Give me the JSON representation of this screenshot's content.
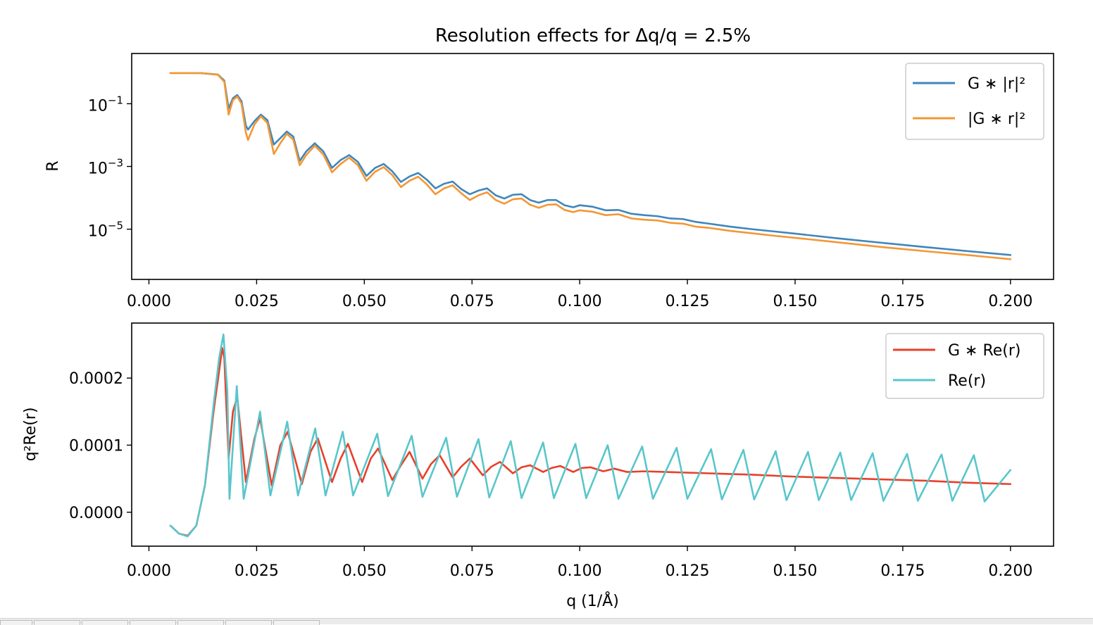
{
  "figure_title": "Resolution effects for Δq/q = 2.5%",
  "chart_data": [
    {
      "type": "line",
      "title": "Resolution effects for Δq/q = 2.5%",
      "xlabel": "",
      "ylabel": "R",
      "yscale": "log",
      "xlim": [
        -0.004,
        0.21
      ],
      "ylim": [
        2.5e-07,
        4.0
      ],
      "x_ticks": [
        0.0,
        0.025,
        0.05,
        0.075,
        0.1,
        0.125,
        0.15,
        0.175,
        0.2
      ],
      "x_tick_labels": [
        "0.000",
        "0.025",
        "0.050",
        "0.075",
        "0.100",
        "0.125",
        "0.150",
        "0.175",
        "0.200"
      ],
      "y_ticks": [
        0.1,
        0.001,
        1e-05
      ],
      "y_tick_labels": [
        {
          "base": "10",
          "exp": "−1"
        },
        {
          "base": "10",
          "exp": "−3"
        },
        {
          "base": "10",
          "exp": "−5"
        }
      ],
      "grid": false,
      "legend_position": "upper-right",
      "series": [
        {
          "name": "G ∗ |r|²",
          "color": "#3f86bd",
          "x": [
            0.005,
            0.012,
            0.016,
            0.0175,
            0.0185,
            0.0195,
            0.0205,
            0.0215,
            0.0225,
            0.023,
            0.0245,
            0.026,
            0.0275,
            0.029,
            0.0305,
            0.032,
            0.0335,
            0.035,
            0.0365,
            0.0385,
            0.0405,
            0.0425,
            0.0445,
            0.0465,
            0.0485,
            0.0505,
            0.0525,
            0.0545,
            0.0565,
            0.0585,
            0.0605,
            0.0625,
            0.0645,
            0.0665,
            0.0685,
            0.0705,
            0.0725,
            0.0745,
            0.0765,
            0.0785,
            0.0805,
            0.0825,
            0.0845,
            0.0865,
            0.0885,
            0.0905,
            0.0925,
            0.0945,
            0.0965,
            0.0985,
            0.1,
            0.103,
            0.106,
            0.109,
            0.112,
            0.115,
            0.118,
            0.121,
            0.124,
            0.127,
            0.13,
            0.135,
            0.14,
            0.145,
            0.15,
            0.16,
            0.17,
            0.18,
            0.19,
            0.2
          ],
          "y": [
            0.95,
            0.95,
            0.85,
            0.55,
            0.07,
            0.15,
            0.19,
            0.12,
            0.02,
            0.015,
            0.028,
            0.045,
            0.03,
            0.005,
            0.008,
            0.013,
            0.009,
            0.0015,
            0.003,
            0.0055,
            0.003,
            0.0009,
            0.0016,
            0.0023,
            0.0014,
            0.0005,
            0.0009,
            0.0012,
            0.0007,
            0.00032,
            0.00048,
            0.00062,
            0.00038,
            0.0002,
            0.00028,
            0.00033,
            0.00019,
            0.00013,
            0.00017,
            0.0002,
            0.00012,
            9.5e-05,
            0.000125,
            0.00013,
            8.5e-05,
            7e-05,
            8.5e-05,
            8.5e-05,
            5.8e-05,
            5e-05,
            5.8e-05,
            5.2e-05,
            4e-05,
            4.1e-05,
            3.1e-05,
            2.8e-05,
            2.6e-05,
            2.2e-05,
            2.1e-05,
            1.7e-05,
            1.5e-05,
            1.2e-05,
            1e-05,
            8.5e-06,
            7.2e-06,
            5.1e-06,
            3.7e-06,
            2.7e-06,
            2e-06,
            1.5e-06
          ]
        },
        {
          "name": "|G ∗ r|²",
          "color": "#f39734",
          "x": [
            0.005,
            0.012,
            0.016,
            0.0175,
            0.0185,
            0.0195,
            0.0205,
            0.0215,
            0.0225,
            0.023,
            0.0245,
            0.026,
            0.0275,
            0.029,
            0.0305,
            0.032,
            0.0335,
            0.035,
            0.0365,
            0.0385,
            0.0405,
            0.0425,
            0.0445,
            0.0465,
            0.0485,
            0.0505,
            0.0525,
            0.0545,
            0.0565,
            0.0585,
            0.0605,
            0.0625,
            0.0645,
            0.0665,
            0.0685,
            0.0705,
            0.0725,
            0.0745,
            0.0765,
            0.0785,
            0.0805,
            0.0825,
            0.0845,
            0.0865,
            0.0885,
            0.0905,
            0.0925,
            0.0945,
            0.0965,
            0.0985,
            0.1,
            0.103,
            0.106,
            0.109,
            0.112,
            0.115,
            0.118,
            0.121,
            0.124,
            0.127,
            0.13,
            0.135,
            0.14,
            0.145,
            0.15,
            0.16,
            0.17,
            0.18,
            0.19,
            0.2
          ],
          "y": [
            0.95,
            0.95,
            0.84,
            0.5,
            0.045,
            0.13,
            0.17,
            0.1,
            0.012,
            0.007,
            0.022,
            0.04,
            0.024,
            0.0025,
            0.0055,
            0.011,
            0.0072,
            0.0011,
            0.0023,
            0.0046,
            0.0024,
            0.00065,
            0.0012,
            0.0019,
            0.0011,
            0.00035,
            0.00068,
            0.00095,
            0.00053,
            0.00022,
            0.00035,
            0.00047,
            0.00027,
            0.00013,
            0.0002,
            0.00025,
            0.00014,
            8.5e-05,
            0.00012,
            0.00015,
            8.5e-05,
            6.5e-05,
            9e-05,
            9.5e-05,
            6e-05,
            4.8e-05,
            6e-05,
            6.2e-05,
            4.1e-05,
            3.5e-05,
            4e-05,
            3.6e-05,
            2.8e-05,
            3e-05,
            2.2e-05,
            2e-05,
            1.9e-05,
            1.6e-05,
            1.5e-05,
            1.2e-05,
            1.1e-05,
            8.8e-06,
            7.4e-06,
            6.2e-06,
            5.3e-06,
            3.8e-06,
            2.7e-06,
            2e-06,
            1.5e-06,
            1.1e-06
          ]
        }
      ]
    },
    {
      "type": "line",
      "title": "",
      "xlabel": "q (1/Å)",
      "ylabel": "q²Re(r)",
      "yscale": "linear",
      "xlim": [
        -0.004,
        0.21
      ],
      "ylim": [
        -5.06e-05,
        0.000282
      ],
      "x_ticks": [
        0.0,
        0.025,
        0.05,
        0.075,
        0.1,
        0.125,
        0.15,
        0.175,
        0.2
      ],
      "x_tick_labels": [
        "0.000",
        "0.025",
        "0.050",
        "0.075",
        "0.100",
        "0.125",
        "0.150",
        "0.175",
        "0.200"
      ],
      "y_ticks": [
        0.0,
        0.0001,
        0.0002
      ],
      "y_tick_labels": [
        "0.0000",
        "0.0001",
        "0.0002"
      ],
      "grid": false,
      "legend_position": "upper-right",
      "series": [
        {
          "name": "G ∗ Re(r)",
          "color": "#e8402a",
          "x": [
            0.005,
            0.007,
            0.009,
            0.011,
            0.013,
            0.015,
            0.0165,
            0.017,
            0.0175,
            0.0185,
            0.0195,
            0.0205,
            0.0225,
            0.0245,
            0.0258,
            0.0285,
            0.0305,
            0.0322,
            0.0355,
            0.0375,
            0.0392,
            0.0425,
            0.0445,
            0.0462,
            0.0495,
            0.0515,
            0.0532,
            0.0565,
            0.0585,
            0.0605,
            0.0635,
            0.0655,
            0.0675,
            0.0705,
            0.0725,
            0.0745,
            0.0775,
            0.0795,
            0.0815,
            0.0845,
            0.0865,
            0.0885,
            0.0915,
            0.0935,
            0.0955,
            0.0985,
            0.1005,
            0.1025,
            0.1055,
            0.108,
            0.111,
            0.115,
            0.12,
            0.13,
            0.14,
            0.15,
            0.16,
            0.17,
            0.18,
            0.19,
            0.2
          ],
          "y": [
            -2e-05,
            -3.2e-05,
            -3.5e-05,
            -2e-05,
            4e-05,
            0.00015,
            0.00022,
            0.000245,
            0.00023,
            8e-05,
            0.00015,
            0.000172,
            4.5e-05,
            0.00011,
            0.00014,
            4e-05,
            0.0001,
            0.00012,
            4.2e-05,
            9e-05,
            0.00011,
            4.5e-05,
            8e-05,
            0.000102,
            4.5e-05,
            8e-05,
            9.5e-05,
            4.8e-05,
            7e-05,
            9e-05,
            5e-05,
            7.2e-05,
            8.5e-05,
            5.2e-05,
            6.8e-05,
            8e-05,
            5.5e-05,
            6.8e-05,
            7.5e-05,
            5.8e-05,
            6.7e-05,
            7e-05,
            6e-05,
            6.6e-05,
            6.9e-05,
            6e-05,
            6.6e-05,
            6.7e-05,
            6.1e-05,
            6.5e-05,
            6e-05,
            6.1e-05,
            6e-05,
            5.8e-05,
            5.6e-05,
            5.3e-05,
            5.1e-05,
            4.9e-05,
            4.7e-05,
            4.4e-05,
            4.2e-05
          ]
        },
        {
          "name": "Re(r)",
          "color": "#59c6cb",
          "x": [
            0.005,
            0.007,
            0.009,
            0.011,
            0.013,
            0.015,
            0.0163,
            0.0173,
            0.0182,
            0.0187,
            0.0204,
            0.022,
            0.0258,
            0.0282,
            0.0321,
            0.0346,
            0.0386,
            0.041,
            0.045,
            0.0474,
            0.053,
            0.0555,
            0.061,
            0.0635,
            0.069,
            0.0715,
            0.0765,
            0.079,
            0.084,
            0.0865,
            0.0915,
            0.094,
            0.099,
            0.1015,
            0.1065,
            0.109,
            0.1145,
            0.117,
            0.1225,
            0.125,
            0.1305,
            0.133,
            0.138,
            0.1405,
            0.1455,
            0.148,
            0.153,
            0.1555,
            0.1605,
            0.163,
            0.168,
            0.1705,
            0.176,
            0.1785,
            0.184,
            0.1865,
            0.1915,
            0.194,
            0.2
          ],
          "y": [
            -2e-05,
            -3.2e-05,
            -3.6e-05,
            -2e-05,
            4e-05,
            0.00016,
            0.00023,
            0.000265,
            0.00018,
            2e-05,
            0.000188,
            2e-05,
            0.00015,
            2.5e-05,
            0.000135,
            2.5e-05,
            0.000125,
            2.5e-05,
            0.00012,
            2.5e-05,
            0.000117,
            2.4e-05,
            0.000114,
            2.3e-05,
            0.000111,
            2.3e-05,
            0.000109,
            2.2e-05,
            0.000106,
            2.1e-05,
            0.000104,
            2.1e-05,
            0.000102,
            2.1e-05,
            0.0001,
            2e-05,
            9.8e-05,
            2e-05,
            9.6e-05,
            2e-05,
            9.4e-05,
            1.9e-05,
            9.3e-05,
            1.9e-05,
            9.1e-05,
            1.8e-05,
            9e-05,
            1.8e-05,
            8.9e-05,
            1.8e-05,
            8.8e-05,
            1.7e-05,
            8.7e-05,
            1.7e-05,
            8.6e-05,
            1.7e-05,
            8.5e-05,
            1.6e-05,
            6.3e-05
          ]
        }
      ]
    }
  ]
}
